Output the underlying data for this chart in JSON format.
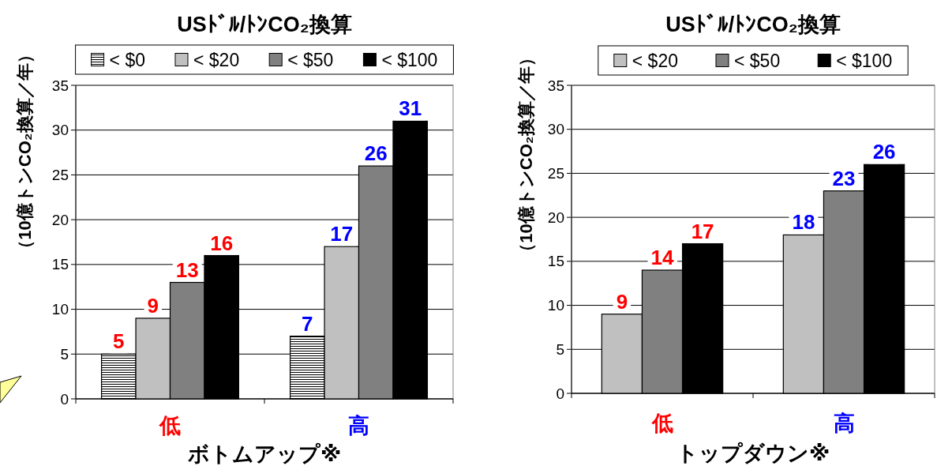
{
  "chart_data": [
    {
      "type": "bar",
      "title": "USﾄﾞﾙ/ﾄﾝCO₂換算",
      "xlabel": "ボトムアップ※",
      "ylabel": "（10億トンCO₂換算／年）",
      "categories": [
        "低",
        "高"
      ],
      "series": [
        {
          "name": "< $0",
          "color": "#000000",
          "values": [
            5,
            7
          ]
        },
        {
          "name": "< $20",
          "color": "#c0c0c0",
          "values": [
            9,
            17
          ]
        },
        {
          "name": "< $50",
          "color": "#808080",
          "values": [
            13,
            26
          ]
        },
        {
          "name": "< $100",
          "color": "#000000",
          "values": [
            16,
            31
          ]
        }
      ],
      "ylim": [
        0,
        35
      ],
      "yticks": [
        0,
        5,
        10,
        15,
        20,
        25,
        30,
        35
      ],
      "grid": "y",
      "legend": "top",
      "data_labels": true
    },
    {
      "type": "bar",
      "title": "USﾄﾞﾙ/ﾄﾝCO₂換算",
      "xlabel": "トップダウン※",
      "ylabel": "（10億トンCO₂換算／年）",
      "categories": [
        "低",
        "高"
      ],
      "series": [
        {
          "name": "< $20",
          "color": "#c0c0c0",
          "values": [
            9,
            18
          ]
        },
        {
          "name": "< $50",
          "color": "#808080",
          "values": [
            14,
            23
          ]
        },
        {
          "name": "< $100",
          "color": "#000000",
          "values": [
            17,
            26
          ]
        }
      ],
      "ylim": [
        0,
        35
      ],
      "yticks": [
        0,
        5,
        10,
        15,
        20,
        25,
        30,
        35
      ],
      "grid": "y",
      "legend": "top",
      "data_labels": true
    }
  ]
}
